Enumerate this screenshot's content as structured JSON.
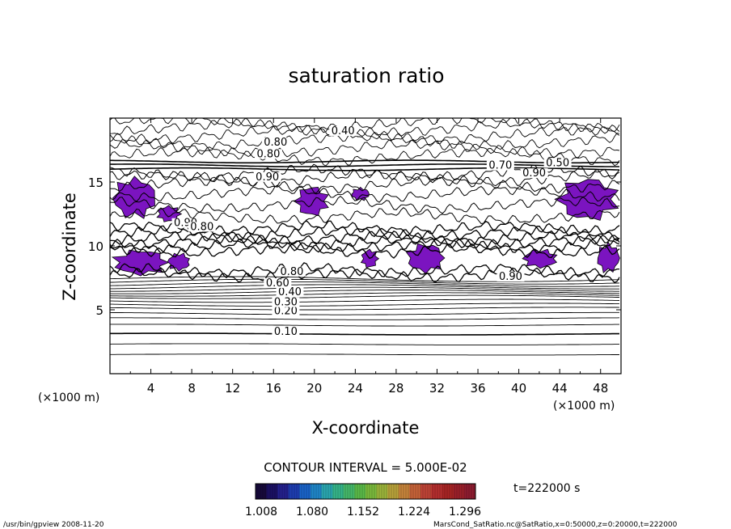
{
  "chart_data": {
    "type": "heatmap",
    "title": "saturation ratio",
    "xlabel": "X-coordinate",
    "ylabel": "Z-coordinate",
    "x_unit": "(×1000 m)",
    "z_unit": "(×1000 m)",
    "xlim": [
      0,
      50
    ],
    "ylim": [
      0,
      20
    ],
    "x_ticks": [
      4,
      8,
      12,
      16,
      20,
      24,
      28,
      32,
      36,
      40,
      44,
      48
    ],
    "y_ticks": [
      5,
      10,
      15
    ],
    "contour_interval_text": "CONTOUR INTERVAL = 5.000E-02",
    "contour_labels": [
      {
        "text": "0.10",
        "x": 17.2,
        "z": 3.1
      },
      {
        "text": "0.20",
        "x": 17.2,
        "z": 4.7
      },
      {
        "text": "0.30",
        "x": 17.2,
        "z": 5.4
      },
      {
        "text": "0.40",
        "x": 17.6,
        "z": 6.2
      },
      {
        "text": "0.60",
        "x": 16.4,
        "z": 6.9
      },
      {
        "text": "0.90",
        "x": 15.4,
        "z": 15.2
      },
      {
        "text": "0.90",
        "x": 7.4,
        "z": 11.6
      },
      {
        "text": "0.80",
        "x": 9.0,
        "z": 11.3
      },
      {
        "text": "0.80",
        "x": 16.2,
        "z": 17.9
      },
      {
        "text": "0.80",
        "x": 15.5,
        "z": 17.0
      },
      {
        "text": "0.40",
        "x": 22.8,
        "z": 18.8
      },
      {
        "text": "0.50",
        "x": 43.8,
        "z": 16.3
      },
      {
        "text": "0.70",
        "x": 38.2,
        "z": 16.1
      },
      {
        "text": "0.90",
        "x": 41.5,
        "z": 15.5
      },
      {
        "text": "0.90",
        "x": 39.2,
        "z": 7.4
      },
      {
        "text": "0.80",
        "x": 17.8,
        "z": 7.8
      }
    ],
    "colorbar": {
      "ticks": [
        "1.008",
        "1.080",
        "1.152",
        "1.224",
        "1.296"
      ],
      "colors": [
        "#160a3a",
        "#1b1063",
        "#24208d",
        "#1e3db1",
        "#1a63c8",
        "#1f86c8",
        "#2aa6b0",
        "#35b58a",
        "#45b86a",
        "#5aba48",
        "#7aba3c",
        "#9bb43a",
        "#b8a23a",
        "#c7843b",
        "#c66238",
        "#bf4336",
        "#b52e2e",
        "#a82424",
        "#9c1f2a",
        "#8e1c30"
      ]
    },
    "fill_color": "#7b14c0",
    "fill_regions": [
      {
        "x0": 0.0,
        "x1": 4.8,
        "z0": 12.0,
        "z1": 15.5
      },
      {
        "x0": 4.5,
        "x1": 7.0,
        "z0": 11.8,
        "z1": 13.2
      },
      {
        "x0": 0.0,
        "x1": 6.0,
        "z0": 7.6,
        "z1": 9.8
      },
      {
        "x0": 5.5,
        "x1": 8.0,
        "z0": 8.0,
        "z1": 9.5
      },
      {
        "x0": 18.0,
        "x1": 21.5,
        "z0": 12.2,
        "z1": 14.8
      },
      {
        "x0": 23.5,
        "x1": 25.5,
        "z0": 13.5,
        "z1": 14.6
      },
      {
        "x0": 24.5,
        "x1": 26.3,
        "z0": 8.2,
        "z1": 9.8
      },
      {
        "x0": 28.8,
        "x1": 33.0,
        "z0": 7.8,
        "z1": 10.3
      },
      {
        "x0": 40.2,
        "x1": 44.0,
        "z0": 8.2,
        "z1": 9.8
      },
      {
        "x0": 43.5,
        "x1": 50.0,
        "z0": 11.8,
        "z1": 15.5
      },
      {
        "x0": 47.5,
        "x1": 50.0,
        "z0": 7.8,
        "z1": 10.3
      }
    ]
  },
  "annotations": {
    "time": "t=222000 s",
    "footer_left": "/usr/bin/gpview  2008-11-20",
    "footer_right": "MarsCond_SatRatio.nc@SatRatio,x=0:50000,z=0:20000,t=222000"
  }
}
